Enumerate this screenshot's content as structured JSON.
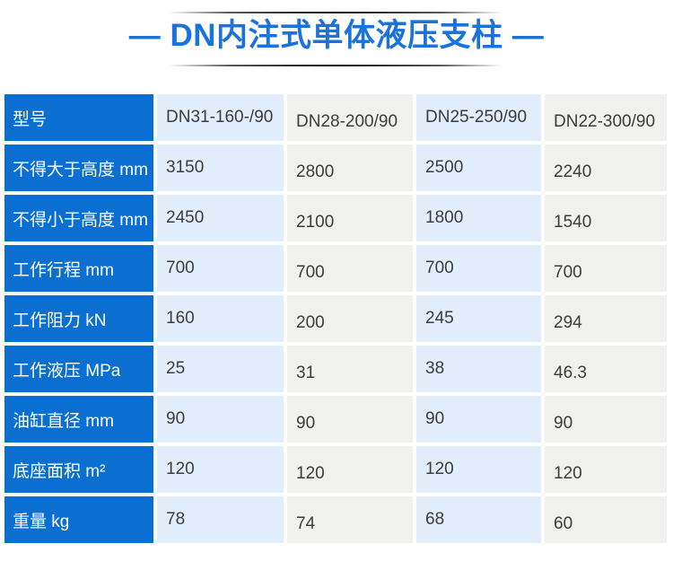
{
  "title": {
    "text": "— DN内注式单体液压支柱 —"
  },
  "colors": {
    "title_blue": "#1a73dc",
    "row_header_blue": "#0a6fd0",
    "cell_light_blue": "#e2eefb",
    "cell_light_gray": "#f1f1ef",
    "value_text": "#3c3c3c"
  },
  "table": {
    "rows": [
      {
        "label": "型号",
        "values": [
          "DN31-160-/90",
          "DN28-200/90",
          "DN25-250/90",
          "DN22-300/90"
        ]
      },
      {
        "label": "不得大于高度 mm",
        "values": [
          "3150",
          "2800",
          "2500",
          "2240"
        ]
      },
      {
        "label": "不得小于高度 mm",
        "values": [
          "2450",
          "2100",
          "1800",
          "1540"
        ]
      },
      {
        "label": "工作行程 mm",
        "values": [
          "700",
          "700",
          "700",
          "700"
        ]
      },
      {
        "label": "工作阻力 kN",
        "values": [
          "160",
          "200",
          "245",
          "294"
        ]
      },
      {
        "label": "工作液压 MPa",
        "values": [
          "25",
          "31",
          "38",
          "46.3"
        ]
      },
      {
        "label": "油缸直径 mm",
        "values": [
          "90",
          "90",
          "90",
          "90"
        ]
      },
      {
        "label": "底座面积 m²",
        "values": [
          "120",
          "120",
          "120",
          "120"
        ]
      },
      {
        "label": "重量 kg",
        "values": [
          "78",
          "74",
          "68",
          "60"
        ]
      }
    ]
  }
}
